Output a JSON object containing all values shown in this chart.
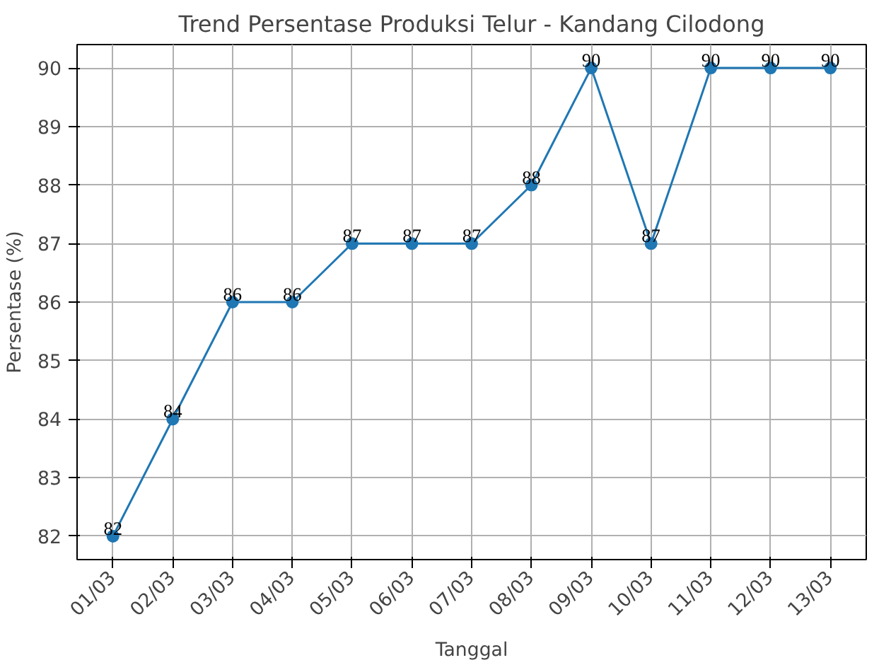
{
  "chart_data": {
    "type": "line",
    "title": "Trend Persentase Produksi Telur - Kandang Cilodong",
    "xlabel": "Tanggal",
    "ylabel": "Persentase (%)",
    "categories": [
      "01/03",
      "02/03",
      "03/03",
      "04/03",
      "05/03",
      "06/03",
      "07/03",
      "08/03",
      "09/03",
      "10/03",
      "11/03",
      "12/03",
      "13/03"
    ],
    "series": [
      {
        "color": "#1f77b4",
        "values": [
          82,
          84,
          86,
          86,
          87,
          87,
          87,
          88,
          90,
          87,
          90,
          90,
          90
        ]
      }
    ],
    "ylim": [
      81.6,
      90.4
    ],
    "yticks": [
      82,
      83,
      84,
      85,
      86,
      87,
      88,
      89,
      90
    ],
    "grid": true,
    "data_labels": true,
    "marker": "circle",
    "line_style": "solid"
  }
}
